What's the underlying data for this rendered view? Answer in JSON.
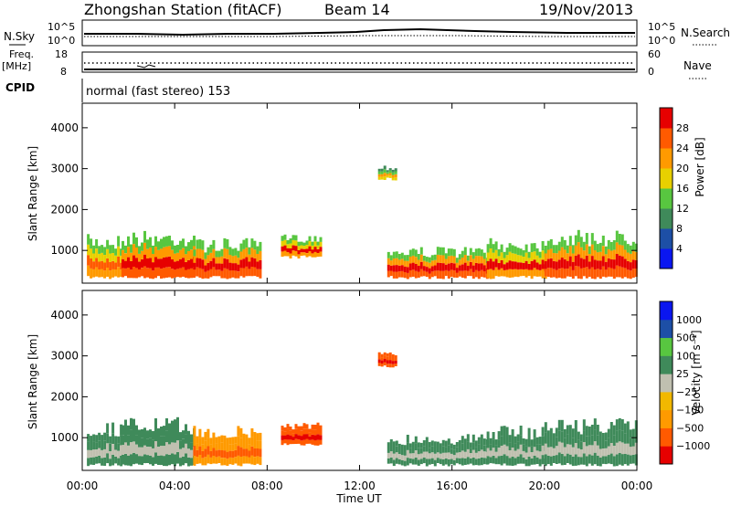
{
  "header": {
    "station": "Zhongshan Station (fitACF)",
    "beam": "Beam 14",
    "date": "19/Nov/2013"
  },
  "nsky_panel": {
    "left_label": "N.Sky",
    "right_label": "N.Search",
    "tick_top": "10^5",
    "tick_bottom": "10^0"
  },
  "freq_panel": {
    "left_label_1": "Freq.",
    "left_label_2": "[MHz]",
    "left_tick_top": "18",
    "left_tick_bottom": "8",
    "right_label": "Nave",
    "right_tick_top": "60",
    "right_tick_bottom": "0"
  },
  "cpid_panel": {
    "label": "CPID",
    "text": "normal (fast stereo) 153"
  },
  "colors": {
    "power": [
      "#0a16f0",
      "#1d4fa6",
      "#3f8a5a",
      "#58c640",
      "#e8d000",
      "#ff9a00",
      "#ff5a00",
      "#e60000"
    ],
    "velocity": [
      "#e60000",
      "#ff5a00",
      "#ff9a00",
      "#f2b800",
      "#c0c0b0",
      "#3f8a5a",
      "#58c640",
      "#1d4fa6",
      "#0a16f0"
    ]
  },
  "chart_data": [
    {
      "type": "heatmap",
      "name": "power",
      "xlabel": "",
      "ylabel": "Slant Range [km]",
      "xlim": [
        0,
        24
      ],
      "ylim": [
        200,
        4600
      ],
      "yticks": [
        "1000",
        "2000",
        "3000",
        "4000"
      ],
      "colorbar_label": "Power [dB]",
      "colorbar_ticks": [
        "4",
        "8",
        "12",
        "16",
        "20",
        "24",
        "28"
      ],
      "blocks": [
        {
          "t0": 0.2,
          "t1": 1.7,
          "r0": 300,
          "r1": 1400,
          "peak": 26
        },
        {
          "t0": 1.7,
          "t1": 4.8,
          "r0": 300,
          "r1": 1500,
          "peak": 30
        },
        {
          "t0": 4.8,
          "t1": 7.7,
          "r0": 300,
          "r1": 1300,
          "peak": 30
        },
        {
          "t0": 8.6,
          "t1": 10.3,
          "r0": 800,
          "r1": 1400,
          "peak": 28
        },
        {
          "t0": 12.8,
          "t1": 13.6,
          "r0": 2700,
          "r1": 3100,
          "peak": 20
        },
        {
          "t0": 13.2,
          "t1": 17.5,
          "r0": 300,
          "r1": 1100,
          "peak": 30
        },
        {
          "t0": 17.5,
          "t1": 20.0,
          "r0": 300,
          "r1": 1300,
          "peak": 28
        },
        {
          "t0": 20.0,
          "t1": 24.0,
          "r0": 300,
          "r1": 1500,
          "peak": 30
        }
      ]
    },
    {
      "type": "heatmap",
      "name": "velocity",
      "xlabel": "Time UT",
      "ylabel": "Slant Range [km]",
      "xlim": [
        0,
        24
      ],
      "ylim": [
        200,
        4600
      ],
      "xticks": [
        "00:00",
        "04:00",
        "08:00",
        "12:00",
        "16:00",
        "20:00",
        "00:00"
      ],
      "yticks": [
        "1000",
        "2000",
        "3000",
        "4000"
      ],
      "colorbar_label": "Velocity [m s⁻¹]",
      "colorbar_ticks": [
        "1000",
        "500",
        "100",
        "25",
        "−25",
        "−100",
        "−500",
        "−1000"
      ],
      "blocks": [
        {
          "t0": 0.2,
          "t1": 1.7,
          "r0": 300,
          "r1": 1400,
          "vel": 50
        },
        {
          "t0": 1.7,
          "t1": 4.8,
          "r0": 300,
          "r1": 1500,
          "vel": 60
        },
        {
          "t0": 4.8,
          "t1": 7.7,
          "r0": 300,
          "r1": 1300,
          "vel": -60
        },
        {
          "t0": 8.6,
          "t1": 10.3,
          "r0": 800,
          "r1": 1400,
          "vel": -300
        },
        {
          "t0": 12.8,
          "t1": 13.6,
          "r0": 2700,
          "r1": 3100,
          "vel": -200
        },
        {
          "t0": 13.2,
          "t1": 17.5,
          "r0": 300,
          "r1": 1100,
          "vel": 80
        },
        {
          "t0": 17.5,
          "t1": 20.0,
          "r0": 300,
          "r1": 1300,
          "vel": 90
        },
        {
          "t0": 20.0,
          "t1": 24.0,
          "r0": 300,
          "r1": 1500,
          "vel": 100
        }
      ]
    }
  ]
}
